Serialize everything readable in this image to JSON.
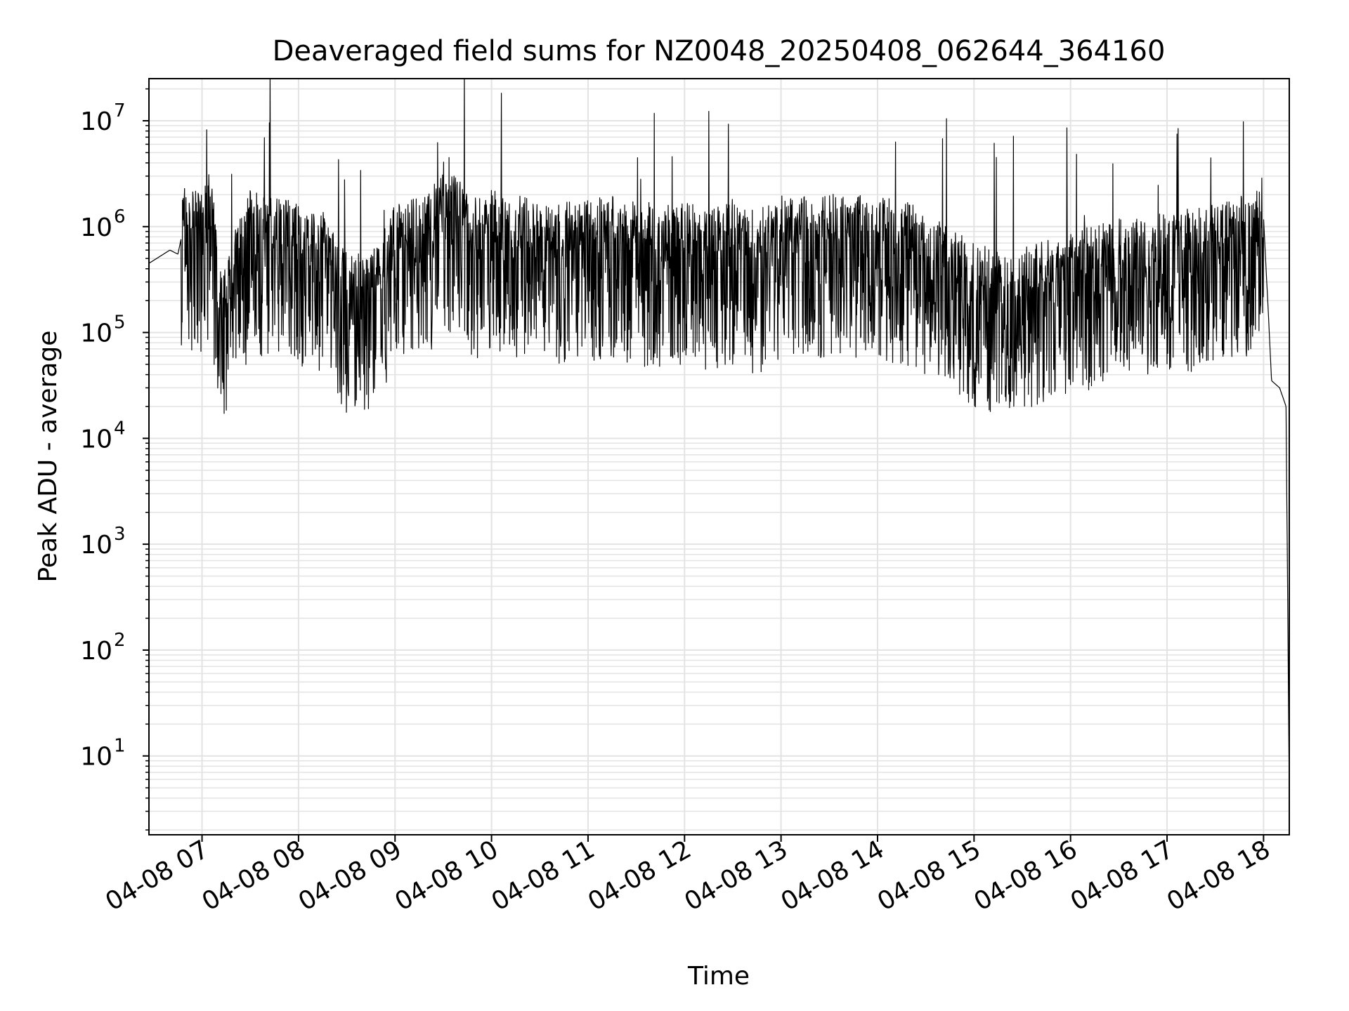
{
  "chart_data": {
    "type": "line",
    "title": "Deaveraged field sums for NZ0048_20250408_062644_364160",
    "xlabel": "Time",
    "ylabel": "Peak ADU - average",
    "yscale": "log",
    "grid": true,
    "xlim": [
      "04-08 06:27",
      "04-08 18:16"
    ],
    "ylim": [
      1.8,
      25000000
    ],
    "x_ticks": [
      "04-08 07",
      "04-08 08",
      "04-08 09",
      "04-08 10",
      "04-08 11",
      "04-08 12",
      "04-08 13",
      "04-08 14",
      "04-08 15",
      "04-08 16",
      "04-08 17",
      "04-08 18"
    ],
    "y_ticks": [
      {
        "value": 10,
        "base": "10",
        "exp": "1"
      },
      {
        "value": 100,
        "base": "10",
        "exp": "2"
      },
      {
        "value": 1000,
        "base": "10",
        "exp": "3"
      },
      {
        "value": 10000,
        "base": "10",
        "exp": "4"
      },
      {
        "value": 100000,
        "base": "10",
        "exp": "5"
      },
      {
        "value": 1000000,
        "base": "10",
        "exp": "6"
      },
      {
        "value": 10000000,
        "base": "10",
        "exp": "7"
      }
    ],
    "line_color": "#000000",
    "series": [
      {
        "x": [
          "04-08 06:27",
          "04-08 06:40",
          "04-08 06:45",
          "04-08 06:48",
          "04-08 07:00",
          "04-08 07:05",
          "04-08 07:12",
          "04-08 07:30",
          "04-08 07:45",
          "04-08 08:00",
          "04-08 08:15",
          "04-08 08:30",
          "04-08 08:40",
          "04-08 08:50",
          "04-08 09:00",
          "04-08 09:20",
          "04-08 09:30",
          "04-08 09:40",
          "04-08 09:50",
          "04-08 10:00",
          "04-08 10:20",
          "04-08 10:30",
          "04-08 10:40",
          "04-08 11:00",
          "04-08 11:15",
          "04-08 11:30",
          "04-08 11:45",
          "04-08 12:00",
          "04-08 12:15",
          "04-08 12:30",
          "04-08 12:45",
          "04-08 13:00",
          "04-08 13:20",
          "04-08 13:40",
          "04-08 14:00",
          "04-08 14:20",
          "04-08 14:40",
          "04-08 15:00",
          "04-08 15:20",
          "04-08 15:40",
          "04-08 16:00",
          "04-08 16:20",
          "04-08 16:40",
          "04-08 17:00",
          "04-08 17:20",
          "04-08 17:40",
          "04-08 17:55",
          "04-08 18:00",
          "04-08 18:03",
          "04-08 18:05",
          "04-08 18:10",
          "04-08 18:14",
          "04-08 18:16"
        ],
        "y": [
          450000,
          600000,
          550000,
          900000,
          800000,
          1200000,
          150000,
          800000,
          700000,
          600000,
          500000,
          200000,
          200000,
          250000,
          600000,
          700000,
          1500000,
          1000000,
          700000,
          800000,
          700000,
          600000,
          600000,
          650000,
          700000,
          600000,
          600000,
          600000,
          550000,
          600000,
          500000,
          700000,
          700000,
          750000,
          700000,
          600000,
          400000,
          250000,
          200000,
          250000,
          300000,
          400000,
          450000,
          500000,
          550000,
          650000,
          800000,
          1200000,
          150000,
          35000,
          30000,
          20000,
          4
        ]
      }
    ]
  }
}
